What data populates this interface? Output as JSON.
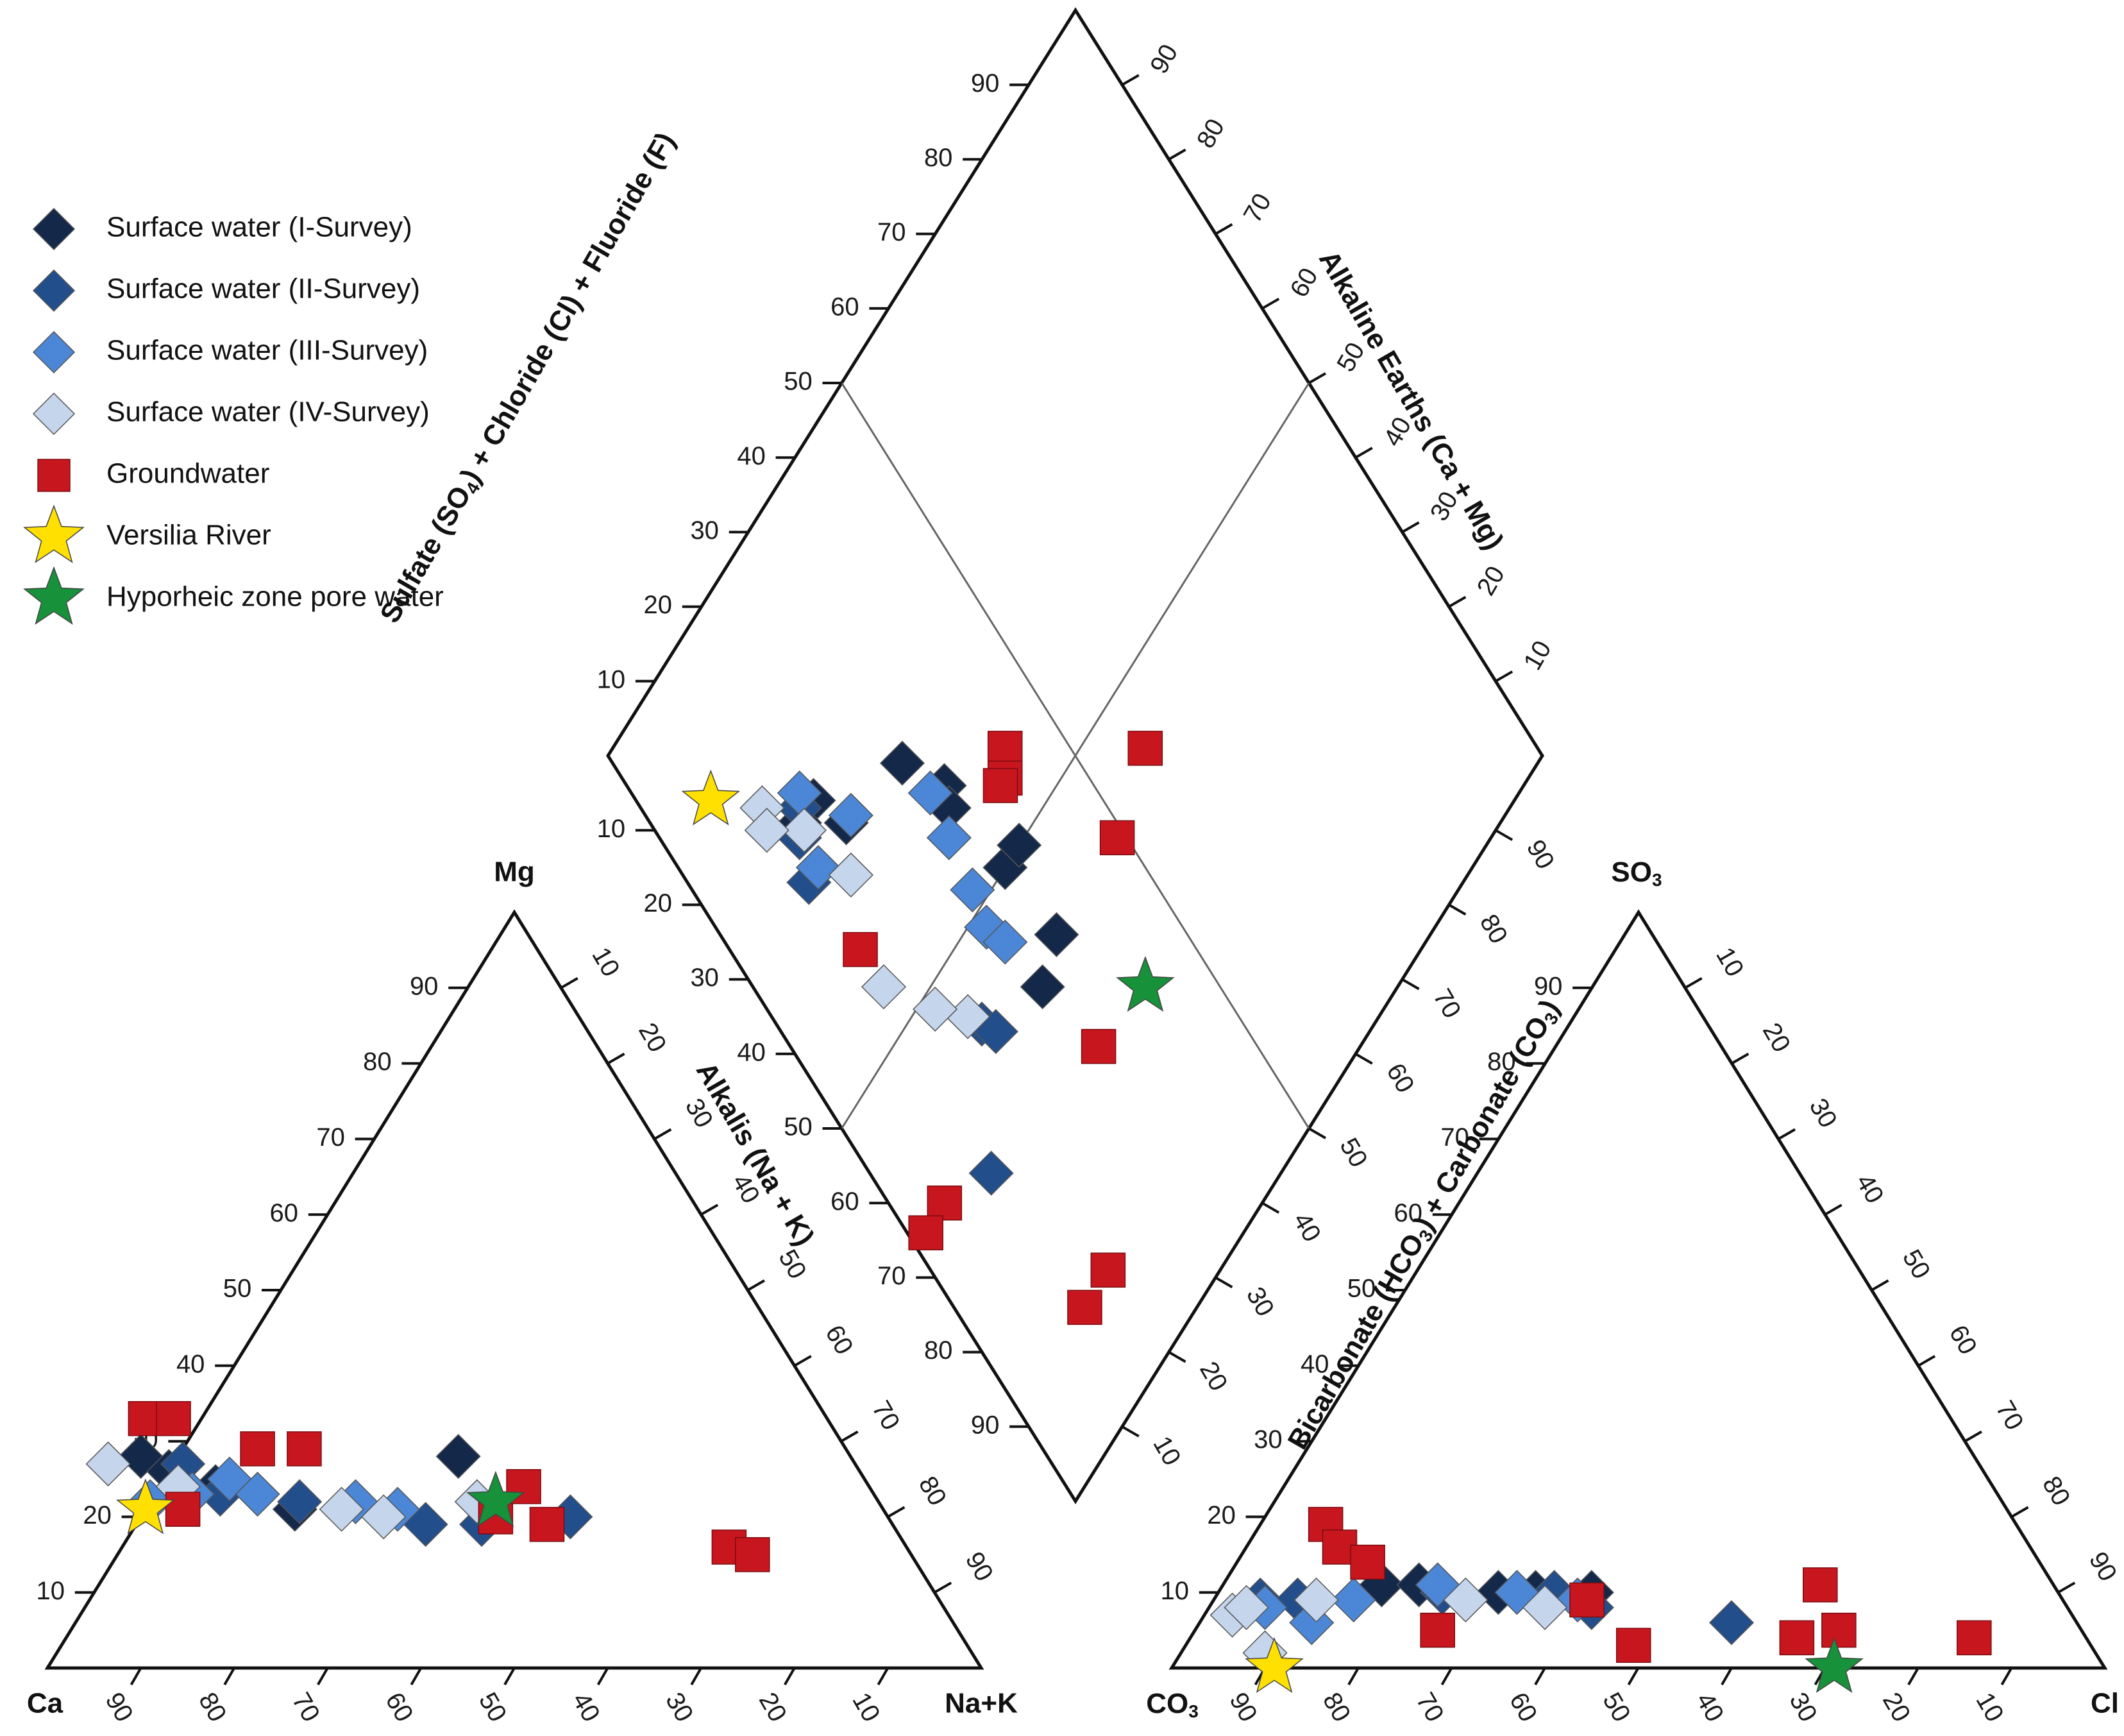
{
  "chart_data": {
    "type": "scatter",
    "title": "",
    "legend": [
      {
        "name": "Surface water (I-Survey)",
        "marker": "diamond",
        "color": "#14284a"
      },
      {
        "name": "Surface water (II-Survey)",
        "marker": "diamond",
        "color": "#234e8c"
      },
      {
        "name": "Surface water (III-Survey)",
        "marker": "diamond",
        "color": "#4b87d6"
      },
      {
        "name": "Surface water (IV-Survey)",
        "marker": "diamond",
        "color": "#c5d5ec"
      },
      {
        "name": "Groundwater",
        "marker": "square",
        "color": "#c8161f"
      },
      {
        "name": "Versilia River",
        "marker": "star",
        "color": "#ffe000"
      },
      {
        "name": "Hyporheic zone pore water",
        "marker": "star",
        "color": "#17913a"
      }
    ],
    "axis_labels": {
      "cation_top": "Mg",
      "cation_left": "Ca",
      "cation_right": "Na+K",
      "cation_side": "Alkalis (Na + K)",
      "anion_top": "SO",
      "anion_top_sub": "3",
      "anion_left": "CO",
      "anion_left_sub": "3",
      "anion_right": "Cl",
      "anion_side_parts": [
        "Bicarbonate (HCO",
        "3",
        ") + Carbonate (CO",
        "3",
        ")"
      ],
      "diamond_upper_left_parts": [
        "Sulfate (SO",
        "4",
        ") + Chloride (Cl) + Fluoride (F)"
      ],
      "diamond_upper_right": "Alkaline Earths (Ca + Mg)"
    },
    "ticks": {
      "ca_axis": [
        "90",
        "80",
        "70",
        "60",
        "50",
        "40",
        "30",
        "20",
        "10"
      ],
      "mg_axis": [
        "10",
        "20",
        "30",
        "40",
        "50",
        "60",
        "70",
        "80",
        "90"
      ],
      "na_axis": [
        "10",
        "20",
        "30",
        "40",
        "50",
        "60",
        "70",
        "80",
        "90"
      ],
      "cl_axis": [
        "90",
        "80",
        "70",
        "60",
        "50",
        "40",
        "30",
        "20",
        "10"
      ],
      "so4_axis": [
        "10",
        "20",
        "30",
        "40",
        "50",
        "60",
        "70",
        "80",
        "90"
      ],
      "hco3_axis": [
        "10",
        "20",
        "30",
        "40",
        "50",
        "60",
        "70",
        "80",
        "90"
      ],
      "diamond_ul": [
        "10",
        "20",
        "30",
        "40",
        "50",
        "60",
        "70",
        "80",
        "90"
      ],
      "diamond_ur": [
        "90",
        "80",
        "70",
        "60",
        "50",
        "40",
        "30",
        "20",
        "10"
      ],
      "diamond_ll": [
        "10",
        "20",
        "30",
        "40",
        "50",
        "60",
        "70",
        "80",
        "90"
      ],
      "diamond_lr": [
        "10",
        "20",
        "30",
        "40",
        "50",
        "60",
        "70",
        "80",
        "90"
      ]
    },
    "cation_series": [
      {
        "name": "Surface water (I-Survey)",
        "points": [
          [
            76,
            28
          ],
          [
            70,
            24
          ],
          [
            63,
            21
          ],
          [
            42,
            28
          ],
          [
            74,
            26
          ]
        ]
      },
      {
        "name": "Surface water (II-Survey)",
        "points": [
          [
            74,
            24
          ],
          [
            70,
            23
          ],
          [
            62,
            22
          ],
          [
            50,
            19
          ],
          [
            44,
            19
          ],
          [
            34,
            20
          ],
          [
            72,
            27
          ]
        ]
      },
      {
        "name": "Surface water (III-Survey)",
        "points": [
          [
            78,
            22
          ],
          [
            68,
            25
          ],
          [
            56,
            22
          ],
          [
            66,
            23
          ],
          [
            52,
            21
          ],
          [
            73,
            23
          ]
        ]
      },
      {
        "name": "Surface water (IV-Survey)",
        "points": [
          [
            80,
            27
          ],
          [
            74,
            24
          ],
          [
            58,
            21
          ],
          [
            54,
            20
          ],
          [
            43,
            22
          ]
        ]
      },
      {
        "name": "Groundwater",
        "points": [
          [
            75,
            21
          ],
          [
            73,
            33
          ],
          [
            70,
            33
          ],
          [
            63,
            29
          ],
          [
            58,
            29
          ],
          [
            42,
            20
          ],
          [
            37,
            24
          ],
          [
            37,
            19
          ],
          [
            19,
            16
          ],
          [
            17,
            15
          ]
        ]
      },
      {
        "name": "Versilia River",
        "points": [
          [
            79,
            21
          ]
        ]
      },
      {
        "name": "Hyporheic zone pore water",
        "points": [
          [
            41,
            22
          ]
        ]
      }
    ],
    "anion_series": [
      {
        "name": "Surface water (I-Survey)",
        "points": [
          [
            72,
            11
          ],
          [
            68,
            11
          ],
          [
            56,
            10
          ],
          [
            50,
            10
          ],
          [
            60,
            10
          ]
        ]
      },
      {
        "name": "Surface water (II-Survey)",
        "points": [
          [
            86,
            9
          ],
          [
            82,
            9
          ],
          [
            66,
            10
          ],
          [
            54,
            10
          ],
          [
            51,
            8
          ],
          [
            37,
            6
          ]
        ]
      },
      {
        "name": "Surface water (III-Survey)",
        "points": [
          [
            86,
            8
          ],
          [
            82,
            6
          ],
          [
            76,
            9
          ],
          [
            66,
            11
          ],
          [
            58,
            10
          ],
          [
            52,
            9
          ]
        ]
      },
      {
        "name": "Surface water (IV-Survey)",
        "points": [
          [
            90,
            7
          ],
          [
            88,
            8
          ],
          [
            80,
            9
          ],
          [
            64,
            9
          ],
          [
            56,
            8
          ],
          [
            89,
            2
          ]
        ]
      },
      {
        "name": "Groundwater",
        "points": [
          [
            74,
            19
          ],
          [
            74,
            16
          ],
          [
            72,
            14
          ],
          [
            69,
            5
          ],
          [
            51,
            9
          ],
          [
            49,
            3
          ],
          [
            31,
            4
          ],
          [
            25,
            11
          ],
          [
            26,
            5
          ],
          [
            12,
            4
          ]
        ]
      },
      {
        "name": "Versilia River",
        "points": [
          [
            89,
            0
          ]
        ]
      },
      {
        "name": "Hyporheic zone pore water",
        "points": [
          [
            29,
            0
          ]
        ]
      }
    ],
    "diamond_series": [
      {
        "name": "Surface water (I-Survey)",
        "points": [
          [
            75,
            19
          ],
          [
            68,
            31
          ],
          [
            62,
            34
          ],
          [
            60,
            33
          ],
          [
            50,
            35
          ],
          [
            50,
            38
          ],
          [
            38,
            31
          ],
          [
            40,
            36
          ],
          [
            70,
            21
          ],
          [
            75,
            16
          ]
        ]
      },
      {
        "name": "Surface water (II-Survey)",
        "points": [
          [
            74,
            15
          ],
          [
            70,
            13
          ],
          [
            42,
            22
          ],
          [
            31,
            13
          ],
          [
            40,
            23
          ],
          [
            76,
            17
          ]
        ]
      },
      {
        "name": "Surface water (III-Survey)",
        "points": [
          [
            70,
            22
          ],
          [
            63,
            32
          ],
          [
            58,
            31
          ],
          [
            52,
            30
          ],
          [
            48,
            29
          ],
          [
            45,
            30
          ],
          [
            70,
            15
          ],
          [
            77,
            18
          ]
        ]
      },
      {
        "name": "Surface water (IV-Survey)",
        "points": [
          [
            80,
            13
          ],
          [
            74,
            16
          ],
          [
            66,
            18
          ],
          [
            55,
            14
          ],
          [
            44,
            21
          ],
          [
            48,
            18
          ],
          [
            78,
            12
          ]
        ]
      },
      {
        "name": "Groundwater",
        "points": [
          [
            58,
            43
          ],
          [
            56,
            41
          ],
          [
            56,
            40
          ],
          [
            60,
            14
          ],
          [
            43,
            58
          ],
          [
            40,
            49
          ],
          [
            34,
            6
          ],
          [
            34,
            2
          ],
          [
            28,
            33
          ],
          [
            12,
            19
          ],
          [
            12,
            14
          ]
        ]
      },
      {
        "name": "Versilia River",
        "points": [
          [
            86,
            8
          ]
        ]
      },
      {
        "name": "Hyporheic zone pore water",
        "points": [
          [
            27,
            42
          ]
        ]
      }
    ]
  }
}
